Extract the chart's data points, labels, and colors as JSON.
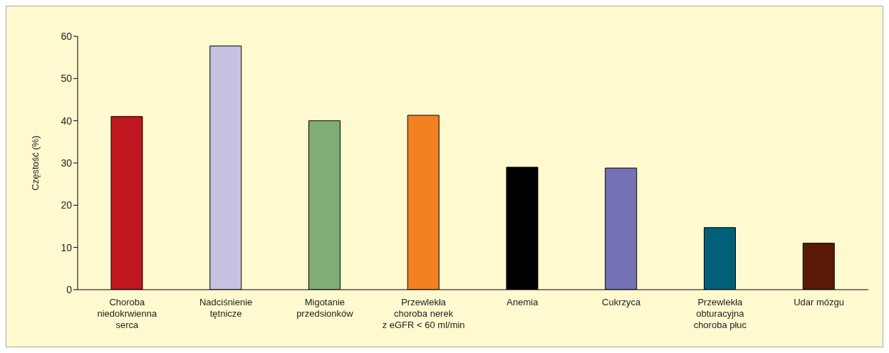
{
  "chart_data": {
    "type": "bar",
    "ylabel": "Częstość (%)",
    "categories": [
      "Choroba\nniedokrwienna\nserca",
      "Nadciśnienie\ntętnicze",
      "Migotanie\nprzedsionków",
      "Przewlekła\nchoroba nerek\nz eGFR < 60 ml/min",
      "Anemia",
      "Cukrzyca",
      "Przewlekła\nobturacyjna\nchoroba płuc",
      "Udar mózgu"
    ],
    "values": [
      41,
      57.7,
      40,
      41.3,
      29,
      28.8,
      14.7,
      11
    ],
    "colors": [
      "#c0161f",
      "#c5c3e1",
      "#7fad74",
      "#f28121",
      "#000000",
      "#7571b5",
      "#00607a",
      "#5a1a06"
    ],
    "ylim": [
      0,
      60
    ],
    "yticks": [
      0,
      10,
      20,
      30,
      40,
      50,
      60
    ],
    "grid": false,
    "legend": false
  }
}
